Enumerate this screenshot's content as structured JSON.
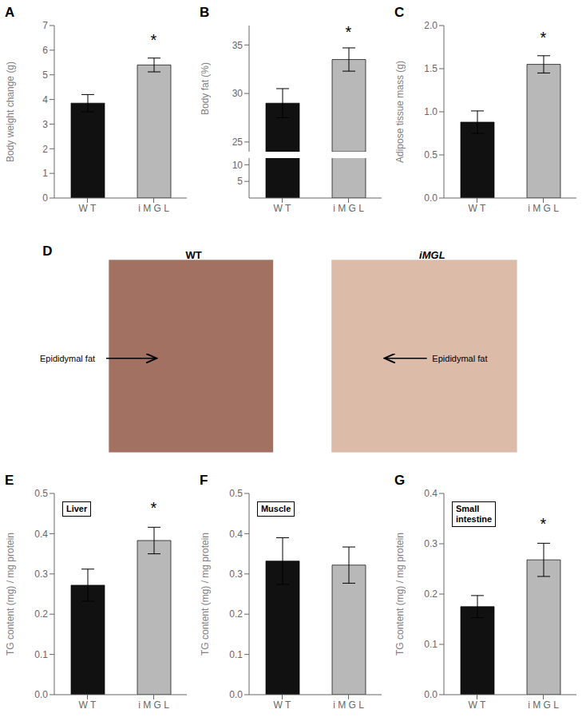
{
  "chart_data": [
    {
      "type": "bar",
      "title": "A",
      "ylabel": "Body weight change (g)",
      "categories": [
        "W T",
        "i M G L"
      ],
      "values": [
        3.85,
        5.4
      ],
      "errors": [
        0.35,
        0.28
      ],
      "colors": [
        "#111111",
        "#b8b8b8"
      ],
      "ylim": [
        0,
        7
      ],
      "yticks": [
        0,
        1,
        2,
        3,
        4,
        5,
        6,
        7
      ],
      "annotations": [
        "*"
      ]
    },
    {
      "type": "broken_bar",
      "title": "B",
      "ylabel": "Body fat (%)",
      "categories": [
        "W T",
        "i M G L"
      ],
      "values": [
        29.0,
        33.5
      ],
      "errors": [
        1.5,
        1.2
      ],
      "colors": [
        "#111111",
        "#b8b8b8"
      ],
      "ylim": [
        [
          0,
          12
        ],
        [
          24,
          37
        ]
      ],
      "yticks": [
        [
          5,
          10
        ],
        [
          25,
          30,
          35
        ]
      ],
      "annotations": [
        "*"
      ]
    },
    {
      "type": "bar",
      "title": "C",
      "ylabel": "Adipose tissue mass (g)",
      "categories": [
        "W T",
        "i M G L"
      ],
      "values": [
        0.88,
        1.55
      ],
      "errors": [
        0.13,
        0.1
      ],
      "colors": [
        "#111111",
        "#b8b8b8"
      ],
      "ylim": [
        0.0,
        2.0
      ],
      "yticks": [
        {
          "value": 0,
          "label": "0.0"
        },
        0.5,
        {
          "value": 1,
          "label": "1.0"
        },
        1.5,
        {
          "value": 2,
          "label": "2.0"
        }
      ],
      "annotations": [
        "*"
      ]
    },
    {
      "type": "image",
      "title": "D",
      "categories": [
        "WT",
        "iMGL"
      ],
      "colors": [
        "#7a3520",
        "#c49070"
      ],
      "annotations": [
        "Epididymal fat",
        "Epididymal fat"
      ]
    },
    {
      "type": "bar",
      "title": "E",
      "subtitle": "Liver",
      "ylabel": "TG content (mg) / mg protein",
      "categories": [
        "W T",
        "i M G L"
      ],
      "values": [
        0.272,
        0.383
      ],
      "errors": [
        0.04,
        0.033
      ],
      "colors": [
        "#111111",
        "#b8b8b8"
      ],
      "ylim": [
        0.0,
        0.5
      ],
      "yticks": [
        {
          "value": 0,
          "label": "0.0"
        },
        0.1,
        0.2,
        0.3,
        0.4,
        0.5
      ],
      "annotations": [
        "*"
      ]
    },
    {
      "type": "bar",
      "title": "F",
      "subtitle": "Muscle",
      "ylabel": "TG content (mg) / mg protein",
      "categories": [
        "W T",
        "i M G L"
      ],
      "values": [
        0.332,
        0.322
      ],
      "errors": [
        0.058,
        0.045
      ],
      "colors": [
        "#111111",
        "#b8b8b8"
      ],
      "ylim": [
        0.0,
        0.5
      ],
      "yticks": [
        {
          "value": 0,
          "label": "0.0"
        },
        0.1,
        0.2,
        0.3,
        0.4,
        0.5
      ]
    },
    {
      "type": "bar",
      "title": "G",
      "subtitle": "Small\nintestine",
      "ylabel": "TG content (mg) / mg protein",
      "categories": [
        "W T",
        "i M G L"
      ],
      "values": [
        0.175,
        0.268
      ],
      "errors": [
        0.022,
        0.033
      ],
      "colors": [
        "#111111",
        "#b8b8b8"
      ],
      "ylim": [
        0.0,
        0.4
      ],
      "yticks": [
        {
          "value": 0,
          "label": "0.0"
        },
        0.1,
        0.2,
        0.3,
        0.4
      ],
      "annotations": [
        "*"
      ]
    }
  ]
}
